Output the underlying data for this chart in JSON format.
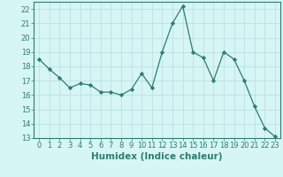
{
  "x": [
    0,
    1,
    2,
    3,
    4,
    5,
    6,
    7,
    8,
    9,
    10,
    11,
    12,
    13,
    14,
    15,
    16,
    17,
    18,
    19,
    20,
    21,
    22,
    23
  ],
  "y": [
    18.5,
    17.8,
    17.2,
    16.5,
    16.8,
    16.7,
    16.2,
    16.2,
    16.0,
    16.4,
    17.5,
    16.5,
    19.0,
    21.0,
    22.2,
    19.0,
    18.6,
    17.0,
    19.0,
    18.5,
    17.0,
    15.2,
    13.7,
    13.1
  ],
  "line_color": "#2e7d6e",
  "marker": "D",
  "marker_size": 2.2,
  "bg_color": "#d6f5f5",
  "grid_color": "#b8dede",
  "xlabel": "Humidex (Indice chaleur)",
  "xlim": [
    -0.5,
    23.5
  ],
  "ylim": [
    13,
    22.5
  ],
  "yticks": [
    13,
    14,
    15,
    16,
    17,
    18,
    19,
    20,
    21,
    22
  ],
  "xticks": [
    0,
    1,
    2,
    3,
    4,
    5,
    6,
    7,
    8,
    9,
    10,
    11,
    12,
    13,
    14,
    15,
    16,
    17,
    18,
    19,
    20,
    21,
    22,
    23
  ],
  "tick_color": "#2e7d6e",
  "label_color": "#2e7d6e",
  "xlabel_fontsize": 7.5,
  "tick_fontsize": 6.0
}
